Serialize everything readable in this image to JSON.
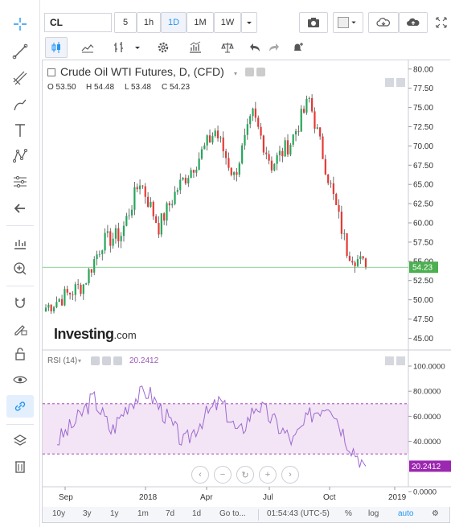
{
  "toolbar": {
    "symbol": "CL",
    "intervals": [
      "5",
      "1h",
      "1D",
      "1M",
      "1W"
    ],
    "active_interval": "1D"
  },
  "legend": {
    "title": "Crude Oil WTI Futures, D, (CFD)",
    "open": "O 53.50",
    "high": "H 54.48",
    "low": "L 53.48",
    "close": "C 54.23"
  },
  "watermark": {
    "brand": "Investing",
    "suffix": ".com"
  },
  "rsi": {
    "label": "RSI (14)",
    "value": "20.2412"
  },
  "bottom_bar": {
    "ranges": [
      "10y",
      "3y",
      "1y",
      "1m",
      "7d",
      "1d",
      "Go to..."
    ],
    "time": "01:54:43 (UTC-5)",
    "percent": "%",
    "log": "log",
    "auto": "auto"
  },
  "chart_data": {
    "type": "candlestick",
    "title": "Crude Oil WTI Futures, D, (CFD)",
    "price_axis": [
      "80.00",
      "77.50",
      "75.00",
      "72.50",
      "70.00",
      "67.50",
      "65.00",
      "62.50",
      "60.00",
      "57.50",
      "55.00",
      "52.50",
      "50.00",
      "47.50",
      "45.00"
    ],
    "price_range": [
      44.0,
      80.5
    ],
    "current_price": "54.23",
    "rsi_axis": [
      "100.0000",
      "80.0000",
      "60.0000",
      "40.0000",
      "0.0000"
    ],
    "rsi_current": "20.2412",
    "rsi_band": [
      30,
      70
    ],
    "x_labels": [
      "Sep",
      "2018",
      "Apr",
      "Jul",
      "Oct",
      "2019"
    ],
    "price_series": [
      {
        "date": "2017-08",
        "close": 49.0
      },
      {
        "date": "2017-09",
        "close": 50.5
      },
      {
        "date": "2017-10",
        "close": 52.0
      },
      {
        "date": "2017-11",
        "close": 57.5
      },
      {
        "date": "2017-12",
        "close": 58.5
      },
      {
        "date": "2018-01",
        "close": 65.5
      },
      {
        "date": "2018-02",
        "close": 59.5
      },
      {
        "date": "2018-03",
        "close": 64.5
      },
      {
        "date": "2018-04",
        "close": 68.0
      },
      {
        "date": "2018-05",
        "close": 72.0
      },
      {
        "date": "2018-06",
        "close": 66.0
      },
      {
        "date": "2018-07",
        "close": 74.0
      },
      {
        "date": "2018-08",
        "close": 67.5
      },
      {
        "date": "2018-09",
        "close": 70.5
      },
      {
        "date": "2018-10",
        "close": 76.0
      },
      {
        "date": "2018-10b",
        "close": 66.0
      },
      {
        "date": "2018-11",
        "close": 56.5
      },
      {
        "date": "2018-11b",
        "close": 54.23
      }
    ],
    "rsi_series": [
      40,
      55,
      75,
      48,
      72,
      80,
      60,
      38,
      58,
      72,
      45,
      70,
      55,
      40,
      62,
      72,
      40,
      20.24
    ]
  }
}
